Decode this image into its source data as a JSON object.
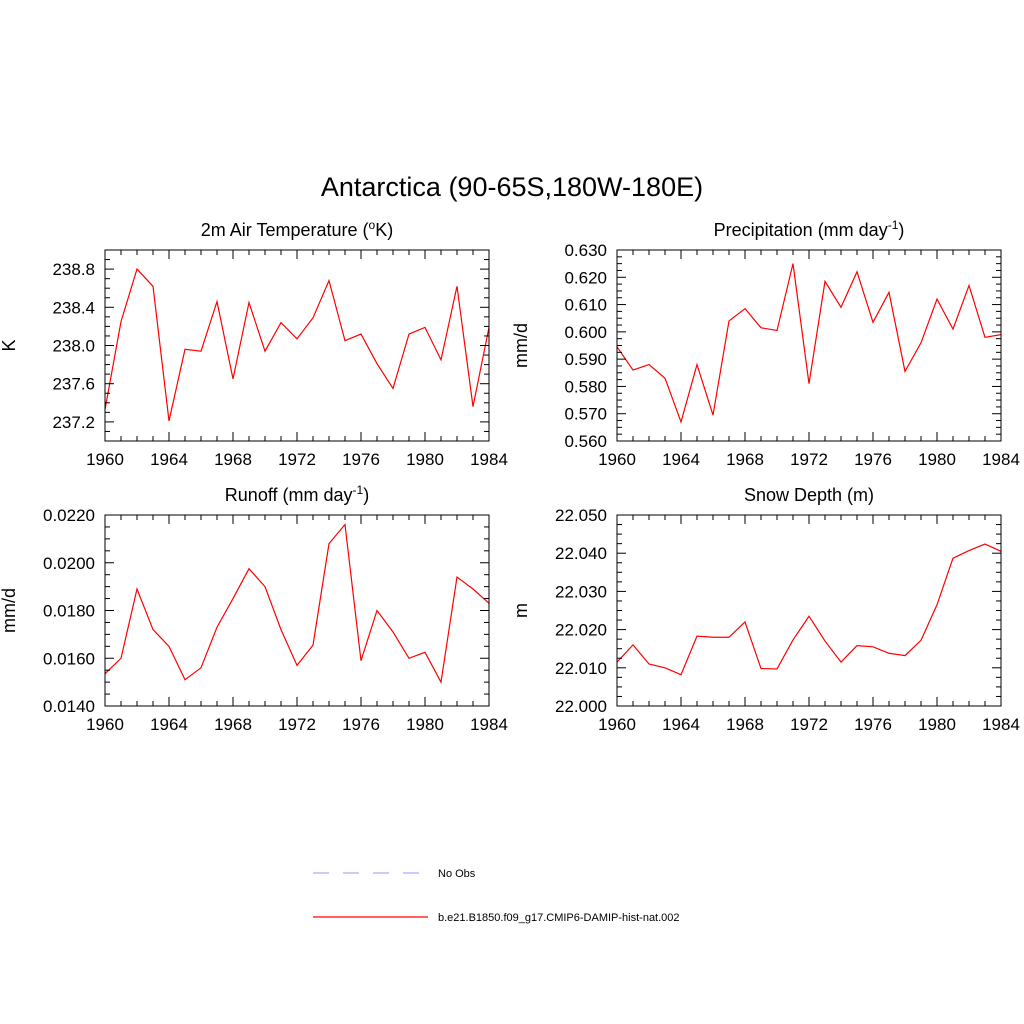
{
  "figure": {
    "title": "Antarctica (90-65S,180W-180E)"
  },
  "colors": {
    "model": "#ff0000",
    "obs": "#aaaaff",
    "axes": "#000000"
  },
  "legend": {
    "entries": [
      {
        "label": "No Obs",
        "style": "dashed",
        "color": "#aaaaff"
      },
      {
        "label": "b.e21.B1850.f09_g17.CMIP6-DAMIP-hist-nat.002",
        "style": "solid",
        "color": "#ff0000"
      }
    ]
  },
  "chart_data": [
    {
      "type": "line",
      "title": "2m Air Temperature",
      "title_unit": "(°K)",
      "ylabel": "K",
      "xlabel": "",
      "xlim": [
        1960,
        1984
      ],
      "ylim": [
        237.0,
        239.0
      ],
      "xticks": [
        "1960",
        "1964",
        "1968",
        "1972",
        "1976",
        "1980",
        "1984"
      ],
      "yticks": [
        "237.2",
        "237.6",
        "238.0",
        "238.4",
        "238.8"
      ],
      "grid": false,
      "x": [
        1960,
        1961,
        1962,
        1963,
        1964,
        1965,
        1966,
        1967,
        1968,
        1969,
        1970,
        1971,
        1972,
        1973,
        1974,
        1975,
        1976,
        1977,
        1978,
        1979,
        1980,
        1981,
        1982,
        1983,
        1984
      ],
      "series": [
        {
          "name": "b.e21.B1850.f09_g17.CMIP6-DAMIP-hist-nat.002",
          "values": [
            237.33,
            238.25,
            238.8,
            238.62,
            237.21,
            237.96,
            237.94,
            238.46,
            237.65,
            238.45,
            237.94,
            238.24,
            238.07,
            238.29,
            238.68,
            238.05,
            238.12,
            237.81,
            237.55,
            238.12,
            238.19,
            237.85,
            238.62,
            237.36,
            238.19
          ]
        }
      ]
    },
    {
      "type": "line",
      "title": "Precipitation",
      "title_unit": "(mm day-1)",
      "ylabel": "mm/d",
      "xlabel": "",
      "xlim": [
        1960,
        1984
      ],
      "ylim": [
        0.56,
        0.63
      ],
      "xticks": [
        "1960",
        "1964",
        "1968",
        "1972",
        "1976",
        "1980",
        "1984"
      ],
      "yticks": [
        "0.560",
        "0.570",
        "0.580",
        "0.590",
        "0.600",
        "0.610",
        "0.620",
        "0.630"
      ],
      "grid": false,
      "x": [
        1960,
        1961,
        1962,
        1963,
        1964,
        1965,
        1966,
        1967,
        1968,
        1969,
        1970,
        1971,
        1972,
        1973,
        1974,
        1975,
        1976,
        1977,
        1978,
        1979,
        1980,
        1981,
        1982,
        1983,
        1984
      ],
      "series": [
        {
          "name": "b.e21.B1850.f09_g17.CMIP6-DAMIP-hist-nat.002",
          "values": [
            0.5945,
            0.586,
            0.588,
            0.583,
            0.567,
            0.588,
            0.5695,
            0.604,
            0.6085,
            0.6015,
            0.6005,
            0.625,
            0.581,
            0.6185,
            0.609,
            0.622,
            0.6035,
            0.6145,
            0.5855,
            0.596,
            0.612,
            0.601,
            0.617,
            0.598,
            0.599
          ]
        }
      ]
    },
    {
      "type": "line",
      "title": "Runoff",
      "title_unit": "(mm day-1)",
      "ylabel": "mm/d",
      "xlabel": "",
      "xlim": [
        1960,
        1984
      ],
      "ylim": [
        0.014,
        0.022
      ],
      "xticks": [
        "1960",
        "1964",
        "1968",
        "1972",
        "1976",
        "1980",
        "1984"
      ],
      "yticks": [
        "0.0140",
        "0.0160",
        "0.0180",
        "0.0200",
        "0.0220"
      ],
      "grid": false,
      "x": [
        1960,
        1961,
        1962,
        1963,
        1964,
        1965,
        1966,
        1967,
        1968,
        1969,
        1970,
        1971,
        1972,
        1973,
        1974,
        1975,
        1976,
        1977,
        1978,
        1979,
        1980,
        1981,
        1982,
        1983,
        1984
      ],
      "series": [
        {
          "name": "b.e21.B1850.f09_g17.CMIP6-DAMIP-hist-nat.002",
          "values": [
            0.01535,
            0.016,
            0.0189,
            0.0172,
            0.0165,
            0.0151,
            0.0156,
            0.0173,
            0.0185,
            0.01975,
            0.019,
            0.0172,
            0.0157,
            0.01655,
            0.0208,
            0.0216,
            0.0159,
            0.018,
            0.0171,
            0.016,
            0.01625,
            0.015,
            0.0194,
            0.0189,
            0.0183
          ]
        }
      ]
    },
    {
      "type": "line",
      "title": "Snow Depth",
      "title_unit": "(m)",
      "ylabel": "m",
      "xlabel": "",
      "xlim": [
        1960,
        1984
      ],
      "ylim": [
        22.0,
        22.05
      ],
      "xticks": [
        "1960",
        "1964",
        "1968",
        "1972",
        "1976",
        "1980",
        "1984"
      ],
      "yticks": [
        "22.000",
        "22.010",
        "22.020",
        "22.030",
        "22.040",
        "22.050"
      ],
      "grid": false,
      "x": [
        1960,
        1961,
        1962,
        1963,
        1964,
        1965,
        1966,
        1967,
        1968,
        1969,
        1970,
        1971,
        1972,
        1973,
        1974,
        1975,
        1976,
        1977,
        1978,
        1979,
        1980,
        1981,
        1982,
        1983,
        1984
      ],
      "series": [
        {
          "name": "b.e21.B1850.f09_g17.CMIP6-DAMIP-hist-nat.002",
          "values": [
            22.0115,
            22.016,
            22.011,
            22.01,
            22.0082,
            22.0183,
            22.018,
            22.018,
            22.022,
            22.0098,
            22.0097,
            22.0173,
            22.0235,
            22.017,
            22.0115,
            22.0158,
            22.0155,
            22.0138,
            22.0132,
            22.0172,
            22.0265,
            22.0387,
            22.0407,
            22.0424,
            22.0405
          ]
        }
      ]
    }
  ]
}
